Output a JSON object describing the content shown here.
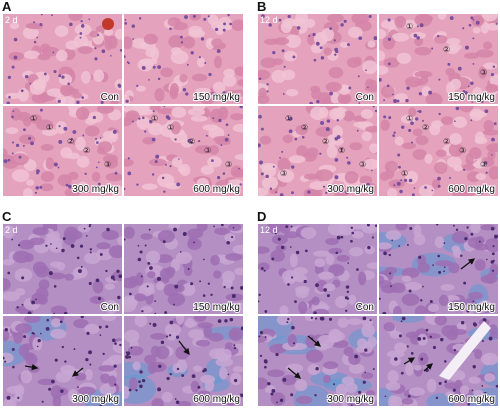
{
  "panels": [
    {
      "letter": "A",
      "day": "2 d",
      "images": [
        {
          "label": "Con"
        },
        {
          "label": "150 mg/kg"
        },
        {
          "label": "300 mg/kg",
          "markers": [
            "①",
            "②",
            "③",
            "①",
            "②"
          ]
        },
        {
          "label": "600 mg/kg",
          "markers": [
            "①",
            "②",
            "③",
            "①",
            "③"
          ]
        }
      ]
    },
    {
      "letter": "B",
      "day": "12 d",
      "images": [
        {
          "label": "Con"
        },
        {
          "label": "150 mg/kg",
          "markers": [
            "①",
            "②",
            "③"
          ]
        },
        {
          "label": "300 mg/kg",
          "markers": [
            "①",
            "②",
            "③",
            "②",
            "①",
            "③"
          ]
        },
        {
          "label": "600 mg/kg",
          "markers": [
            "①",
            "②",
            "③",
            "②",
            "③",
            "①"
          ]
        }
      ]
    },
    {
      "letter": "C",
      "day": "2 d",
      "images": [
        {
          "label": "Con"
        },
        {
          "label": "150 mg/kg"
        },
        {
          "label": "300 mg/kg"
        },
        {
          "label": "600 mg/kg"
        }
      ]
    },
    {
      "letter": "D",
      "day": "12 d",
      "images": [
        {
          "label": "Con"
        },
        {
          "label": "150 mg/kg"
        },
        {
          "label": "300 mg/kg"
        },
        {
          "label": "600 mg/kg"
        }
      ]
    }
  ]
}
